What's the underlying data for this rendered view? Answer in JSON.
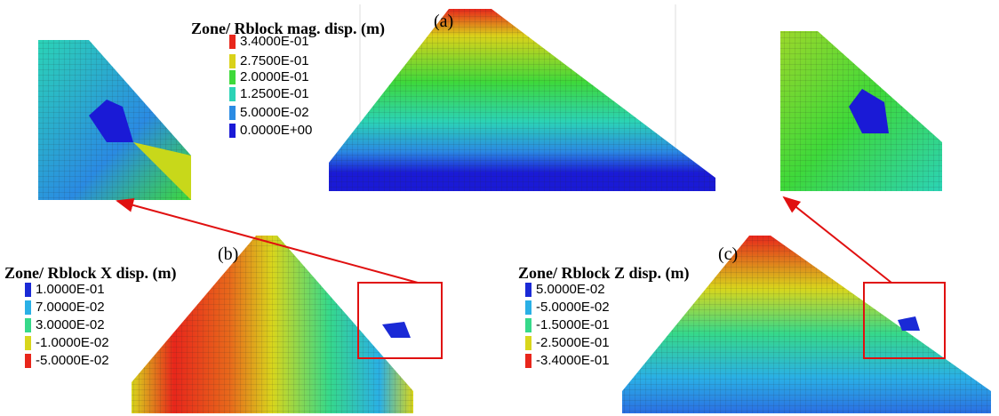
{
  "panels": [
    {
      "label": "(a)",
      "legend_title": "Zone/ Rblock mag. disp. (m)",
      "legend": [
        {
          "label": "3.4000E-01",
          "color": "#e8261b"
        },
        {
          "label": "2.7500E-01",
          "color": "#d9d21a"
        },
        {
          "label": "2.0000E-01",
          "color": "#3ed93a"
        },
        {
          "label": "1.2500E-01",
          "color": "#2bd3b6"
        },
        {
          "label": "5.0000E-02",
          "color": "#2a8be3"
        },
        {
          "label": "0.0000E+00",
          "color": "#1a1ad6"
        }
      ]
    },
    {
      "label": "(b)",
      "legend_title": "Zone/ Rblock X disp. (m)",
      "legend": [
        {
          "label": "1.0000E-01",
          "color": "#1a2ad6"
        },
        {
          "label": "7.0000E-02",
          "color": "#2ab0e6"
        },
        {
          "label": "3.0000E-02",
          "color": "#36d98a"
        },
        {
          "label": "-1.0000E-02",
          "color": "#d8d61c"
        },
        {
          "label": "-5.0000E-02",
          "color": "#e8261b"
        }
      ]
    },
    {
      "label": "(c)",
      "legend_title": "Zone/ Rblock Z disp. (m)",
      "legend": [
        {
          "label": "5.0000E-02",
          "color": "#1a2ad6"
        },
        {
          "label": "-5.0000E-02",
          "color": "#2ab0e6"
        },
        {
          "label": "-1.5000E-01",
          "color": "#36d98a"
        },
        {
          "label": "-2.5000E-01",
          "color": "#d8d61c"
        },
        {
          "label": "-3.4000E-01",
          "color": "#e8261b"
        }
      ]
    }
  ]
}
